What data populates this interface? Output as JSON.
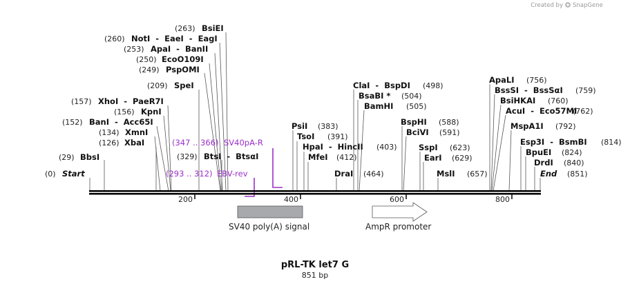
{
  "credit": {
    "created_by": "Created by",
    "brand": "SnapGene"
  },
  "title": "pRL-TK let7 G",
  "length": "851 bp",
  "ticks": [
    "200",
    "400",
    "600",
    "800"
  ],
  "sites": [
    {
      "pos": "(0)",
      "label": "Start",
      "italic": true
    },
    {
      "pos": "(29)",
      "label": "BbsI"
    },
    {
      "pos": "(126)",
      "label": "XbaI"
    },
    {
      "pos": "(134)",
      "label": "XmnI"
    },
    {
      "pos": "(152)",
      "label": "BanI  -  Acc65I"
    },
    {
      "pos": "(156)",
      "label": "KpnI"
    },
    {
      "pos": "(157)",
      "label": "XhoI  -  PaeR7I"
    },
    {
      "pos": "(209)",
      "label": "SpeI"
    },
    {
      "pos": "(249)",
      "label": "PspOMI"
    },
    {
      "pos": "(250)",
      "label": "EcoO109I"
    },
    {
      "pos": "(253)",
      "label": "ApaI  -  BanII"
    },
    {
      "pos": "(260)",
      "label": "NotI  -  EaeI  -  EagI"
    },
    {
      "pos": "(263)",
      "label": "BsiEI"
    },
    {
      "pos": "(329)",
      "label": "BtsI  -  BtsαI"
    },
    {
      "pos": "(383)",
      "label": "PsiI"
    },
    {
      "pos": "(391)",
      "label": "TsoI"
    },
    {
      "pos": "(403)",
      "label": "HpaI  -  HincII"
    },
    {
      "pos": "(412)",
      "label": "MfeI"
    },
    {
      "pos": "(464)",
      "label": "DraI"
    },
    {
      "pos": "(498)",
      "label": "ClaI  -  BspDI"
    },
    {
      "pos": "(504)",
      "label": "BsaBI *"
    },
    {
      "pos": "(505)",
      "label": "BamHI"
    },
    {
      "pos": "(588)",
      "label": "BspHI"
    },
    {
      "pos": "(591)",
      "label": "BciVI"
    },
    {
      "pos": "(623)",
      "label": "SspI"
    },
    {
      "pos": "(629)",
      "label": "EarI"
    },
    {
      "pos": "(657)",
      "label": "MslI"
    },
    {
      "pos": "(756)",
      "label": "ApaLI"
    },
    {
      "pos": "(759)",
      "label": "BssSI  -  BssSαI"
    },
    {
      "pos": "(760)",
      "label": "BsiHKAI"
    },
    {
      "pos": "(762)",
      "label": "AcuI  -  Eco57MI"
    },
    {
      "pos": "(792)",
      "label": "MspA1I"
    },
    {
      "pos": "(814)",
      "label": "Esp3I  -  BsmBI"
    },
    {
      "pos": "(824)",
      "label": "BpuEI"
    },
    {
      "pos": "(840)",
      "label": "DrdI"
    },
    {
      "pos": "(851)",
      "label": "End",
      "italic": true
    }
  ],
  "primers": [
    {
      "range": "(347 .. 366)",
      "name": "SV40pA-R"
    },
    {
      "range": "(293 .. 312)",
      "name": "EBV-rev"
    }
  ],
  "features": [
    {
      "name": "SV40 poly(A) signal"
    },
    {
      "name": "AmpR promoter"
    }
  ],
  "colors": {
    "primer": "#9b30c8",
    "polyA_fill": "#a7a9ad",
    "promoter_fill": "#ffffff",
    "backbone": "#000000"
  }
}
